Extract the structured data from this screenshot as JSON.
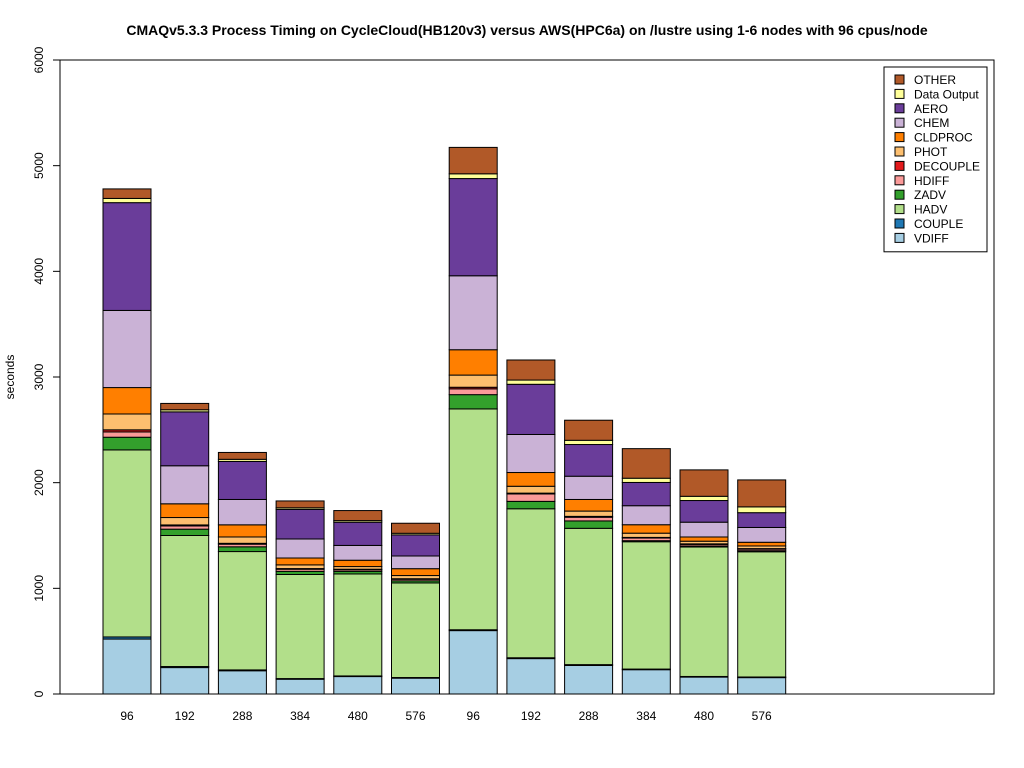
{
  "chart_data": {
    "type": "bar",
    "stacked": true,
    "title": "CMAQv5.3.3 Process Timing on CycleCloud(HB120v3) versus AWS(HPC6a) on /lustre using 1-6 nodes with 96 cpus/node",
    "ylabel": "seconds",
    "xlabel": "",
    "ylim": [
      0,
      6000
    ],
    "yticks": [
      0,
      1000,
      2000,
      3000,
      4000,
      5000,
      6000
    ],
    "grid": false,
    "legend_position": "top-right",
    "categories": [
      "96",
      "192",
      "288",
      "384",
      "480",
      "576",
      "96",
      "192",
      "288",
      "384",
      "480",
      "576"
    ],
    "series": [
      {
        "name": "VDIFF",
        "color": "#a6cee3",
        "values": [
          520,
          250,
          220,
          140,
          165,
          150,
          600,
          335,
          270,
          230,
          160,
          155
        ]
      },
      {
        "name": "COUPLE",
        "color": "#1f78b4",
        "values": [
          20,
          10,
          8,
          6,
          6,
          6,
          8,
          8,
          8,
          6,
          6,
          6
        ]
      },
      {
        "name": "HADV",
        "color": "#b2df8a",
        "values": [
          1770,
          1240,
          1120,
          985,
          965,
          895,
          2090,
          1410,
          1290,
          1205,
          1225,
          1185
        ]
      },
      {
        "name": "ZADV",
        "color": "#33a02c",
        "values": [
          120,
          60,
          45,
          30,
          25,
          20,
          135,
          70,
          70,
          10,
          10,
          10
        ]
      },
      {
        "name": "HDIFF",
        "color": "#fb9a99",
        "values": [
          50,
          30,
          25,
          20,
          15,
          15,
          55,
          70,
          35,
          25,
          15,
          15
        ]
      },
      {
        "name": "DECOUPLE",
        "color": "#e31a1c",
        "values": [
          20,
          10,
          8,
          6,
          5,
          5,
          15,
          8,
          8,
          6,
          5,
          5
        ]
      },
      {
        "name": "PHOT",
        "color": "#fdbf6f",
        "values": [
          150,
          70,
          60,
          35,
          25,
          30,
          115,
          65,
          50,
          40,
          25,
          25
        ]
      },
      {
        "name": "CLDPROC",
        "color": "#ff7f00",
        "values": [
          250,
          130,
          115,
          65,
          60,
          65,
          240,
          130,
          110,
          80,
          40,
          35
        ]
      },
      {
        "name": "CHEM",
        "color": "#cab2d6",
        "values": [
          730,
          360,
          240,
          180,
          140,
          120,
          700,
          360,
          220,
          180,
          140,
          140
        ]
      },
      {
        "name": "AERO",
        "color": "#6a3d9a",
        "values": [
          1020,
          510,
          360,
          280,
          220,
          200,
          920,
          475,
          300,
          220,
          205,
          140
        ]
      },
      {
        "name": "Data Output",
        "color": "#ffff99",
        "values": [
          40,
          20,
          20,
          15,
          15,
          15,
          45,
          40,
          40,
          40,
          40,
          55
        ]
      },
      {
        "name": "OTHER",
        "color": "#b15928",
        "values": [
          90,
          60,
          65,
          65,
          95,
          95,
          250,
          190,
          190,
          280,
          250,
          255
        ]
      }
    ]
  }
}
